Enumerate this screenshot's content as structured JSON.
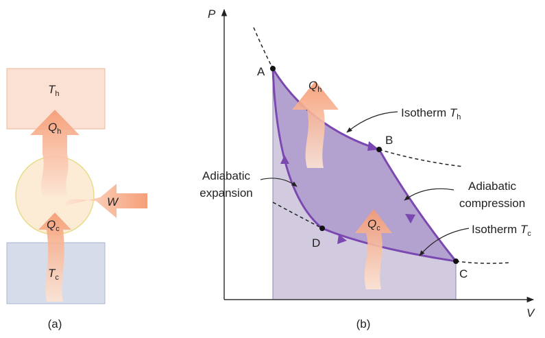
{
  "panel_a": {
    "label": "(a)",
    "hot_reservoir": {
      "symbol": "T",
      "subscript": "h"
    },
    "heat_in": {
      "symbol": "Q",
      "subscript": "h"
    },
    "work": "W",
    "heat_out": {
      "symbol": "Q",
      "subscript": "c"
    },
    "cold_reservoir": {
      "symbol": "T",
      "subscript": "c"
    }
  },
  "panel_b": {
    "label": "(b)",
    "y_axis": "P",
    "x_axis": "V",
    "points": [
      "A",
      "B",
      "C",
      "D"
    ],
    "heat_in": {
      "symbol": "Q",
      "subscript": "h"
    },
    "heat_out": {
      "symbol": "Q",
      "subscript": "c"
    },
    "isotherm_hot": {
      "text": "Isotherm",
      "symbol": "T",
      "subscript": "h"
    },
    "adiabatic_expansion": [
      "Adiabatic",
      "expansion"
    ],
    "adiabatic_compression": [
      "Adiabatic",
      "compression"
    ],
    "isotherm_cold": {
      "text": "Isotherm",
      "symbol": "T",
      "subscript": "c"
    }
  }
}
